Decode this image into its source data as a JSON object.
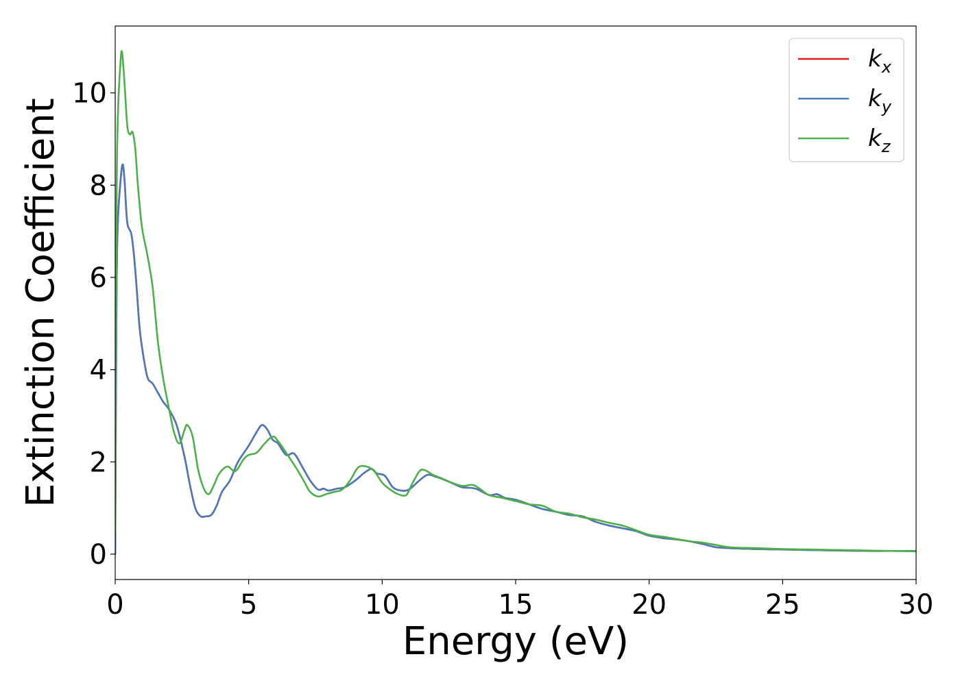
{
  "chart_data": {
    "type": "line",
    "xlabel": "Energy (eV)",
    "ylabel": "Extinction Coefficient",
    "xlim": [
      0,
      30
    ],
    "ylim": [
      -0.55,
      11.45
    ],
    "xticks": [
      0,
      5,
      10,
      15,
      20,
      25,
      30
    ],
    "yticks": [
      0,
      2,
      4,
      6,
      8,
      10
    ],
    "xtick_labels": [
      "0",
      "5",
      "10",
      "15",
      "20",
      "25",
      "30"
    ],
    "ytick_labels": [
      "0",
      "2",
      "4",
      "6",
      "8",
      "10"
    ],
    "grid": false,
    "legend_position": "top-right",
    "series": [
      {
        "name": "k_x",
        "legend_base": "k",
        "legend_sub": "x",
        "color": "#e41a1c",
        "x": [
          0,
          0.05,
          0.1,
          0.2,
          0.28,
          0.35,
          0.45,
          0.6,
          0.7,
          0.8,
          0.9,
          1.0,
          1.2,
          1.4,
          1.6,
          1.8,
          2.0,
          2.3,
          2.6,
          2.8,
          3.0,
          3.2,
          3.4,
          3.6,
          3.8,
          4.0,
          4.3,
          4.6,
          5.0,
          5.3,
          5.5,
          5.7,
          5.9,
          6.1,
          6.4,
          6.7,
          7.0,
          7.3,
          7.6,
          7.8,
          8.0,
          8.3,
          8.6,
          9.0,
          9.3,
          9.6,
          9.8,
          10.1,
          10.4,
          10.7,
          11.0,
          11.4,
          11.7,
          12.0,
          12.3,
          12.7,
          13.0,
          13.5,
          14.0,
          14.3,
          14.6,
          15.0,
          15.5,
          16.0,
          16.5,
          17.0,
          17.5,
          18.0,
          18.5,
          19.0,
          19.5,
          20.0,
          20.5,
          21.0,
          21.5,
          22.0,
          22.5,
          23.0,
          23.5,
          24.0,
          25.0,
          26.0,
          27.0,
          28.0,
          29.0,
          30.0
        ],
        "values": [
          0,
          5.6,
          7.2,
          8.1,
          8.45,
          8.1,
          7.2,
          6.95,
          6.5,
          5.8,
          5.0,
          4.5,
          3.85,
          3.7,
          3.5,
          3.3,
          3.15,
          2.8,
          2.1,
          1.5,
          1.0,
          0.82,
          0.82,
          0.85,
          1.05,
          1.35,
          1.6,
          2.0,
          2.35,
          2.65,
          2.8,
          2.7,
          2.48,
          2.4,
          2.15,
          2.18,
          1.9,
          1.6,
          1.4,
          1.42,
          1.38,
          1.42,
          1.45,
          1.6,
          1.75,
          1.85,
          1.75,
          1.7,
          1.45,
          1.38,
          1.4,
          1.6,
          1.72,
          1.68,
          1.62,
          1.52,
          1.45,
          1.42,
          1.28,
          1.3,
          1.22,
          1.18,
          1.08,
          0.98,
          0.92,
          0.85,
          0.82,
          0.7,
          0.62,
          0.56,
          0.5,
          0.4,
          0.35,
          0.32,
          0.28,
          0.22,
          0.15,
          0.13,
          0.12,
          0.11,
          0.1,
          0.09,
          0.08,
          0.07,
          0.07,
          0.07
        ]
      },
      {
        "name": "k_y",
        "legend_base": "k",
        "legend_sub": "y",
        "color": "#4a7ab8",
        "x": [
          0,
          0.05,
          0.1,
          0.2,
          0.28,
          0.35,
          0.45,
          0.6,
          0.7,
          0.8,
          0.9,
          1.0,
          1.2,
          1.4,
          1.6,
          1.8,
          2.0,
          2.3,
          2.6,
          2.8,
          3.0,
          3.2,
          3.4,
          3.6,
          3.8,
          4.0,
          4.3,
          4.6,
          5.0,
          5.3,
          5.5,
          5.7,
          5.9,
          6.1,
          6.4,
          6.7,
          7.0,
          7.3,
          7.6,
          7.8,
          8.0,
          8.3,
          8.6,
          9.0,
          9.3,
          9.6,
          9.8,
          10.1,
          10.4,
          10.7,
          11.0,
          11.4,
          11.7,
          12.0,
          12.3,
          12.7,
          13.0,
          13.5,
          14.0,
          14.3,
          14.6,
          15.0,
          15.5,
          16.0,
          16.5,
          17.0,
          17.5,
          18.0,
          18.5,
          19.0,
          19.5,
          20.0,
          20.5,
          21.0,
          21.5,
          22.0,
          22.5,
          23.0,
          23.5,
          24.0,
          25.0,
          26.0,
          27.0,
          28.0,
          29.0,
          30.0
        ],
        "values": [
          0,
          5.6,
          7.2,
          8.1,
          8.45,
          8.1,
          7.2,
          6.95,
          6.5,
          5.8,
          5.0,
          4.5,
          3.85,
          3.7,
          3.5,
          3.3,
          3.15,
          2.8,
          2.1,
          1.5,
          1.0,
          0.82,
          0.82,
          0.85,
          1.05,
          1.35,
          1.6,
          2.0,
          2.35,
          2.65,
          2.8,
          2.7,
          2.48,
          2.4,
          2.15,
          2.18,
          1.9,
          1.6,
          1.4,
          1.42,
          1.38,
          1.42,
          1.45,
          1.6,
          1.75,
          1.85,
          1.75,
          1.7,
          1.45,
          1.38,
          1.4,
          1.6,
          1.72,
          1.68,
          1.62,
          1.52,
          1.45,
          1.42,
          1.28,
          1.3,
          1.22,
          1.18,
          1.08,
          0.98,
          0.92,
          0.85,
          0.82,
          0.7,
          0.62,
          0.56,
          0.5,
          0.4,
          0.35,
          0.32,
          0.28,
          0.22,
          0.15,
          0.13,
          0.12,
          0.11,
          0.1,
          0.09,
          0.08,
          0.07,
          0.07,
          0.07
        ]
      },
      {
        "name": "k_z",
        "legend_base": "k",
        "legend_sub": "z",
        "color": "#4daf4a",
        "x": [
          0,
          0.05,
          0.1,
          0.18,
          0.25,
          0.35,
          0.45,
          0.55,
          0.65,
          0.75,
          0.85,
          1.0,
          1.2,
          1.4,
          1.6,
          1.8,
          2.0,
          2.2,
          2.4,
          2.6,
          2.7,
          2.9,
          3.1,
          3.3,
          3.5,
          3.7,
          3.9,
          4.2,
          4.5,
          4.8,
          5.0,
          5.3,
          5.6,
          5.9,
          6.1,
          6.4,
          6.8,
          7.1,
          7.3,
          7.6,
          7.9,
          8.2,
          8.5,
          8.8,
          9.1,
          9.4,
          9.7,
          10.0,
          10.3,
          10.6,
          10.9,
          11.1,
          11.4,
          11.6,
          11.9,
          12.2,
          12.6,
          13.0,
          13.4,
          13.7,
          14.0,
          14.5,
          15.0,
          15.5,
          16.0,
          16.5,
          17.0,
          17.5,
          18.0,
          18.5,
          19.0,
          19.5,
          20.0,
          20.5,
          21.0,
          21.5,
          22.0,
          22.5,
          23.0,
          24.0,
          25.0,
          26.0,
          27.0,
          28.0,
          29.0,
          30.0
        ],
        "values": [
          0.5,
          7.5,
          9.5,
          10.5,
          10.9,
          10.2,
          9.3,
          9.1,
          9.15,
          8.8,
          8.0,
          7.1,
          6.5,
          5.8,
          4.6,
          3.8,
          3.2,
          2.65,
          2.4,
          2.7,
          2.8,
          2.55,
          1.85,
          1.45,
          1.3,
          1.5,
          1.75,
          1.9,
          1.8,
          2.05,
          2.15,
          2.2,
          2.4,
          2.55,
          2.45,
          2.2,
          1.85,
          1.55,
          1.35,
          1.25,
          1.3,
          1.35,
          1.4,
          1.6,
          1.88,
          1.9,
          1.8,
          1.55,
          1.4,
          1.3,
          1.28,
          1.5,
          1.8,
          1.82,
          1.72,
          1.65,
          1.55,
          1.48,
          1.5,
          1.4,
          1.28,
          1.22,
          1.15,
          1.08,
          1.05,
          0.92,
          0.88,
          0.8,
          0.75,
          0.68,
          0.62,
          0.52,
          0.42,
          0.38,
          0.33,
          0.28,
          0.25,
          0.2,
          0.15,
          0.13,
          0.11,
          0.1,
          0.09,
          0.08,
          0.07,
          0.06
        ]
      }
    ]
  }
}
